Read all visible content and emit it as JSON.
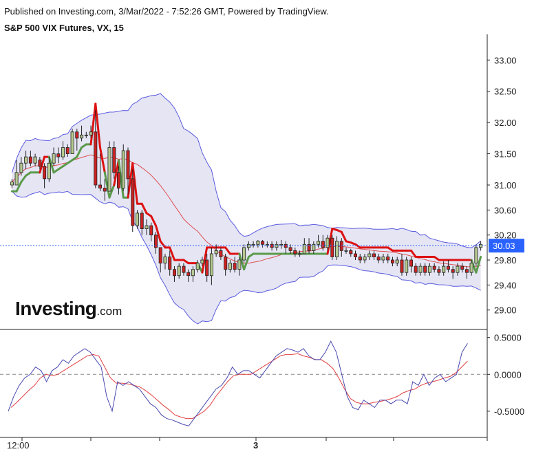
{
  "header": {
    "published": "Published on Investing.com, 3/Mar/2022 - 7:52:26 GMT, Powered by TradingView.",
    "title": "S&P 500 VIX Futures, VX, 15"
  },
  "logo": {
    "main": "Investing",
    "suffix": ".com"
  },
  "colors": {
    "bull": "#b5c98f",
    "bear": "#cc2222",
    "band_fill": "#dcdcf0",
    "band_line": "#5a5ae0",
    "ma_line": "#e05050",
    "green_line": "#5a9a4a",
    "red_line": "#dd1111",
    "osc_line": "#4a4ab0",
    "osc_signal": "#e04040",
    "price_tag": "#2962ff"
  },
  "chart_data": [
    {
      "type": "candlestick",
      "title": "S&P 500 VIX Futures, VX, 15",
      "ylim": [
        28.7,
        33.3
      ],
      "yticks": [
        "33.00",
        "32.50",
        "32.00",
        "31.50",
        "31.00",
        "30.60",
        "30.20",
        "29.80",
        "29.40",
        "29.00"
      ],
      "ytick_values": [
        33.0,
        32.5,
        32.0,
        31.5,
        31.0,
        30.6,
        30.2,
        29.8,
        29.4,
        29.0
      ],
      "last_price": "30.03",
      "last_price_value": 30.03,
      "x_labels": [
        "12:00",
        "3"
      ],
      "candles": [
        [
          31.0,
          31.05,
          30.95,
          31.1
        ],
        [
          31.0,
          31.2,
          31.0,
          31.4
        ],
        [
          31.2,
          31.35,
          31.15,
          31.45
        ],
        [
          31.35,
          31.45,
          31.25,
          31.55
        ],
        [
          31.45,
          31.35,
          31.3,
          31.55
        ],
        [
          31.35,
          31.45,
          31.3,
          31.5
        ],
        [
          31.4,
          31.3,
          31.25,
          31.45
        ],
        [
          31.3,
          31.1,
          30.95,
          31.35
        ],
        [
          31.1,
          31.35,
          31.05,
          31.45
        ],
        [
          31.35,
          31.5,
          31.3,
          31.6
        ],
        [
          31.5,
          31.45,
          31.35,
          31.6
        ],
        [
          31.45,
          31.6,
          31.4,
          31.7
        ],
        [
          31.6,
          31.5,
          31.45,
          31.65
        ],
        [
          31.5,
          31.85,
          31.5,
          31.9
        ],
        [
          31.85,
          31.75,
          31.55,
          31.9
        ],
        [
          31.75,
          31.8,
          31.7,
          31.95
        ],
        [
          31.8,
          31.8,
          31.75,
          31.85
        ],
        [
          31.8,
          31.85,
          31.75,
          31.95
        ],
        [
          31.85,
          31.0,
          30.95,
          32.2
        ],
        [
          31.0,
          30.95,
          30.9,
          31.5
        ],
        [
          30.95,
          30.9,
          30.75,
          31.1
        ],
        [
          30.9,
          31.6,
          30.9,
          31.7
        ],
        [
          31.6,
          31.2,
          31.1,
          31.7
        ],
        [
          31.2,
          30.95,
          30.85,
          31.3
        ],
        [
          30.95,
          31.55,
          30.9,
          31.65
        ],
        [
          31.55,
          31.1,
          30.85,
          31.6
        ],
        [
          31.1,
          30.35,
          30.25,
          31.25
        ],
        [
          30.35,
          30.55,
          30.3,
          30.6
        ],
        [
          30.55,
          30.3,
          30.2,
          30.6
        ],
        [
          30.3,
          30.35,
          30.2,
          30.45
        ],
        [
          30.35,
          30.2,
          30.1,
          30.4
        ],
        [
          30.2,
          30.0,
          29.9,
          30.25
        ],
        [
          30.0,
          29.75,
          29.6,
          30.0
        ],
        [
          29.75,
          29.85,
          29.65,
          29.9
        ],
        [
          29.85,
          29.65,
          29.55,
          29.95
        ],
        [
          29.65,
          29.55,
          29.45,
          29.7
        ],
        [
          29.55,
          29.7,
          29.5,
          29.75
        ],
        [
          29.7,
          29.6,
          29.55,
          29.75
        ],
        [
          29.6,
          29.55,
          29.45,
          29.65
        ],
        [
          29.55,
          29.65,
          29.45,
          29.7
        ],
        [
          29.65,
          29.75,
          29.6,
          29.8
        ],
        [
          29.75,
          29.8,
          29.7,
          29.85
        ],
        [
          29.8,
          29.55,
          29.45,
          29.9
        ],
        [
          29.55,
          29.9,
          29.4,
          30.0
        ],
        [
          29.9,
          29.95,
          29.85,
          30.05
        ],
        [
          29.95,
          29.85,
          29.8,
          30.0
        ],
        [
          29.85,
          29.65,
          29.55,
          29.9
        ],
        [
          29.65,
          29.75,
          29.6,
          29.8
        ],
        [
          29.75,
          29.65,
          29.6,
          29.85
        ],
        [
          29.65,
          29.8,
          29.55,
          29.85
        ],
        [
          29.8,
          30.0,
          29.75,
          30.05
        ],
        [
          30.0,
          30.05,
          29.95,
          30.1
        ],
        [
          30.05,
          30.05,
          30.0,
          30.1
        ],
        [
          30.05,
          30.1,
          30.0,
          30.12
        ],
        [
          30.1,
          30.05,
          30.0,
          30.12
        ],
        [
          30.05,
          30.05,
          30.0,
          30.1
        ],
        [
          30.05,
          30.0,
          29.95,
          30.1
        ],
        [
          30.0,
          30.05,
          29.95,
          30.1
        ],
        [
          30.05,
          30.05,
          29.98,
          30.12
        ],
        [
          30.05,
          30.0,
          29.9,
          30.1
        ],
        [
          30.0,
          29.95,
          29.9,
          30.05
        ],
        [
          29.95,
          29.9,
          29.85,
          30.0
        ],
        [
          29.9,
          29.9,
          29.85,
          29.95
        ],
        [
          29.9,
          30.05,
          29.9,
          30.15
        ],
        [
          30.05,
          29.95,
          29.9,
          30.15
        ],
        [
          29.95,
          30.05,
          29.9,
          30.1
        ],
        [
          30.05,
          30.1,
          30.0,
          30.2
        ],
        [
          30.1,
          30.0,
          29.95,
          30.2
        ],
        [
          30.0,
          30.15,
          29.95,
          30.2
        ],
        [
          30.15,
          29.85,
          29.8,
          30.2
        ],
        [
          29.85,
          30.1,
          29.8,
          30.18
        ],
        [
          30.1,
          29.95,
          29.85,
          30.15
        ],
        [
          29.95,
          29.95,
          29.9,
          30.0
        ],
        [
          29.95,
          29.9,
          29.85,
          29.98
        ],
        [
          29.9,
          29.85,
          29.8,
          29.95
        ],
        [
          29.85,
          29.8,
          29.75,
          29.9
        ],
        [
          29.8,
          29.85,
          29.75,
          29.9
        ],
        [
          29.85,
          29.9,
          29.8,
          29.95
        ],
        [
          29.9,
          29.85,
          29.8,
          29.95
        ],
        [
          29.85,
          29.8,
          29.75,
          29.9
        ],
        [
          29.8,
          29.85,
          29.75,
          29.9
        ],
        [
          29.85,
          29.8,
          29.75,
          29.9
        ],
        [
          29.8,
          29.75,
          29.7,
          29.85
        ],
        [
          29.75,
          29.8,
          29.7,
          29.85
        ],
        [
          29.8,
          29.6,
          29.55,
          29.9
        ],
        [
          29.6,
          29.8,
          29.55,
          29.85
        ],
        [
          29.8,
          29.7,
          29.6,
          29.85
        ],
        [
          29.7,
          29.6,
          29.55,
          29.75
        ],
        [
          29.6,
          29.7,
          29.55,
          29.75
        ],
        [
          29.7,
          29.6,
          29.55,
          29.75
        ],
        [
          29.6,
          29.7,
          29.55,
          29.75
        ],
        [
          29.7,
          29.65,
          29.6,
          29.75
        ],
        [
          29.65,
          29.6,
          29.55,
          29.7
        ],
        [
          29.6,
          29.7,
          29.55,
          29.78
        ],
        [
          29.7,
          29.65,
          29.6,
          29.8
        ],
        [
          29.65,
          29.6,
          29.5,
          29.7
        ],
        [
          29.6,
          29.7,
          29.55,
          29.75
        ],
        [
          29.7,
          29.65,
          29.6,
          29.75
        ],
        [
          29.65,
          29.6,
          29.5,
          29.7
        ],
        [
          29.6,
          29.75,
          29.55,
          29.8
        ],
        [
          29.75,
          30.0,
          29.7,
          30.05
        ],
        [
          30.0,
          30.05,
          29.95,
          30.1
        ]
      ]
    },
    {
      "type": "line",
      "title": "",
      "ylim": [
        -0.8,
        0.6
      ],
      "yticks": [
        "0.5000",
        "0.0000",
        "-0.5000"
      ],
      "ytick_values": [
        0.5,
        0.0,
        -0.5
      ],
      "zero_line": 0.0,
      "series": [
        {
          "role": "oscillator",
          "values": [
            -0.5,
            -0.3,
            -0.15,
            -0.05,
            0.0,
            0.1,
            0.05,
            -0.1,
            0.05,
            0.1,
            0.2,
            0.15,
            0.25,
            0.3,
            0.35,
            0.3,
            0.2,
            0.1,
            -0.3,
            -0.5,
            -0.1,
            -0.15,
            -0.1,
            -0.15,
            -0.2,
            -0.3,
            -0.4,
            -0.45,
            -0.55,
            -0.6,
            -0.62,
            -0.65,
            -0.68,
            -0.7,
            -0.6,
            -0.5,
            -0.4,
            -0.3,
            -0.2,
            -0.15,
            -0.05,
            0.1,
            0.0,
            0.05,
            0.05,
            0.0,
            -0.05,
            0.05,
            0.15,
            0.25,
            0.3,
            0.35,
            0.33,
            0.3,
            0.35,
            0.25,
            0.2,
            0.2,
            0.3,
            0.45,
            0.3,
            0.0,
            -0.3,
            -0.45,
            -0.48,
            -0.35,
            -0.4,
            -0.45,
            -0.35,
            -0.35,
            -0.4,
            -0.35,
            -0.35,
            -0.4,
            -0.1,
            -0.15,
            0.0,
            -0.15,
            -0.05,
            0.0,
            -0.1,
            -0.05,
            0.0,
            0.3,
            0.42
          ]
        },
        {
          "role": "signal",
          "values": [
            -0.45,
            -0.38,
            -0.3,
            -0.22,
            -0.15,
            -0.05,
            0.0,
            -0.02,
            0.0,
            0.05,
            0.1,
            0.15,
            0.2,
            0.25,
            0.27,
            0.25,
            0.1,
            -0.05,
            -0.12,
            -0.12,
            -0.13,
            -0.15,
            -0.17,
            -0.22,
            -0.28,
            -0.35,
            -0.42,
            -0.48,
            -0.55,
            -0.58,
            -0.6,
            -0.6,
            -0.55,
            -0.5,
            -0.42,
            -0.3,
            -0.2,
            -0.1,
            -0.02,
            0.0,
            0.0,
            0.0,
            0.05,
            0.1,
            0.15,
            0.2,
            0.25,
            0.27,
            0.27,
            0.28,
            0.25,
            0.23,
            0.2,
            0.2,
            0.15,
            0.08,
            -0.05,
            -0.2,
            -0.33,
            -0.38,
            -0.4,
            -0.4,
            -0.38,
            -0.37,
            -0.35,
            -0.33,
            -0.3,
            -0.25,
            -0.22,
            -0.2,
            -0.15,
            -0.12,
            -0.1,
            -0.08,
            -0.05,
            -0.03,
            0.02,
            0.1,
            0.18
          ]
        }
      ]
    }
  ]
}
